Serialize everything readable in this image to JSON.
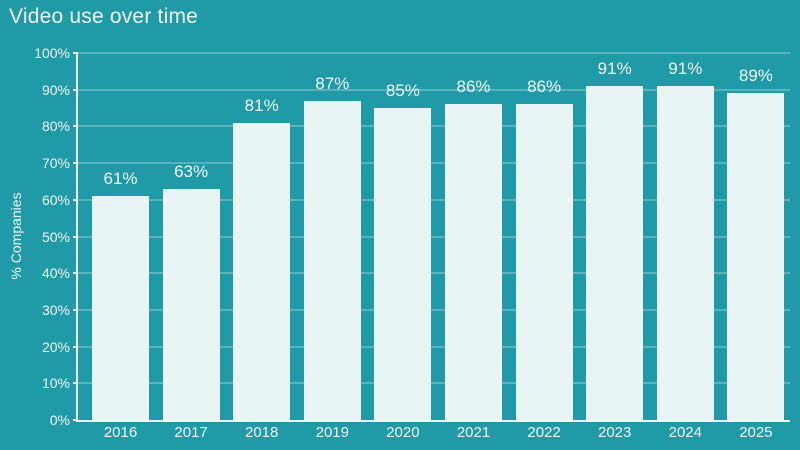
{
  "chart_data": {
    "type": "bar",
    "title": "Video use over time",
    "categories": [
      "2016",
      "2017",
      "2018",
      "2019",
      "2020",
      "2021",
      "2022",
      "2023",
      "2024",
      "2025"
    ],
    "values": [
      61,
      63,
      81,
      87,
      85,
      86,
      86,
      91,
      91,
      89
    ],
    "value_labels": [
      "61%",
      "63%",
      "81%",
      "87%",
      "85%",
      "86%",
      "86%",
      "91%",
      "91%",
      "89%"
    ],
    "xlabel": "",
    "ylabel": "% Companies",
    "ylim": [
      0,
      100
    ],
    "ytick_step": 10,
    "ytick_labels": [
      "0%",
      "10%",
      "20%",
      "30%",
      "40%",
      "50%",
      "60%",
      "70%",
      "80%",
      "90%",
      "100%"
    ],
    "grid": true,
    "legend": false
  },
  "colors": {
    "background": "#1F9AA6",
    "bar_fill": "#E9F5F5",
    "gridline": "#4AAFB9",
    "axis_line": "#F3FAFB",
    "label_text": "#EFF8F9"
  }
}
